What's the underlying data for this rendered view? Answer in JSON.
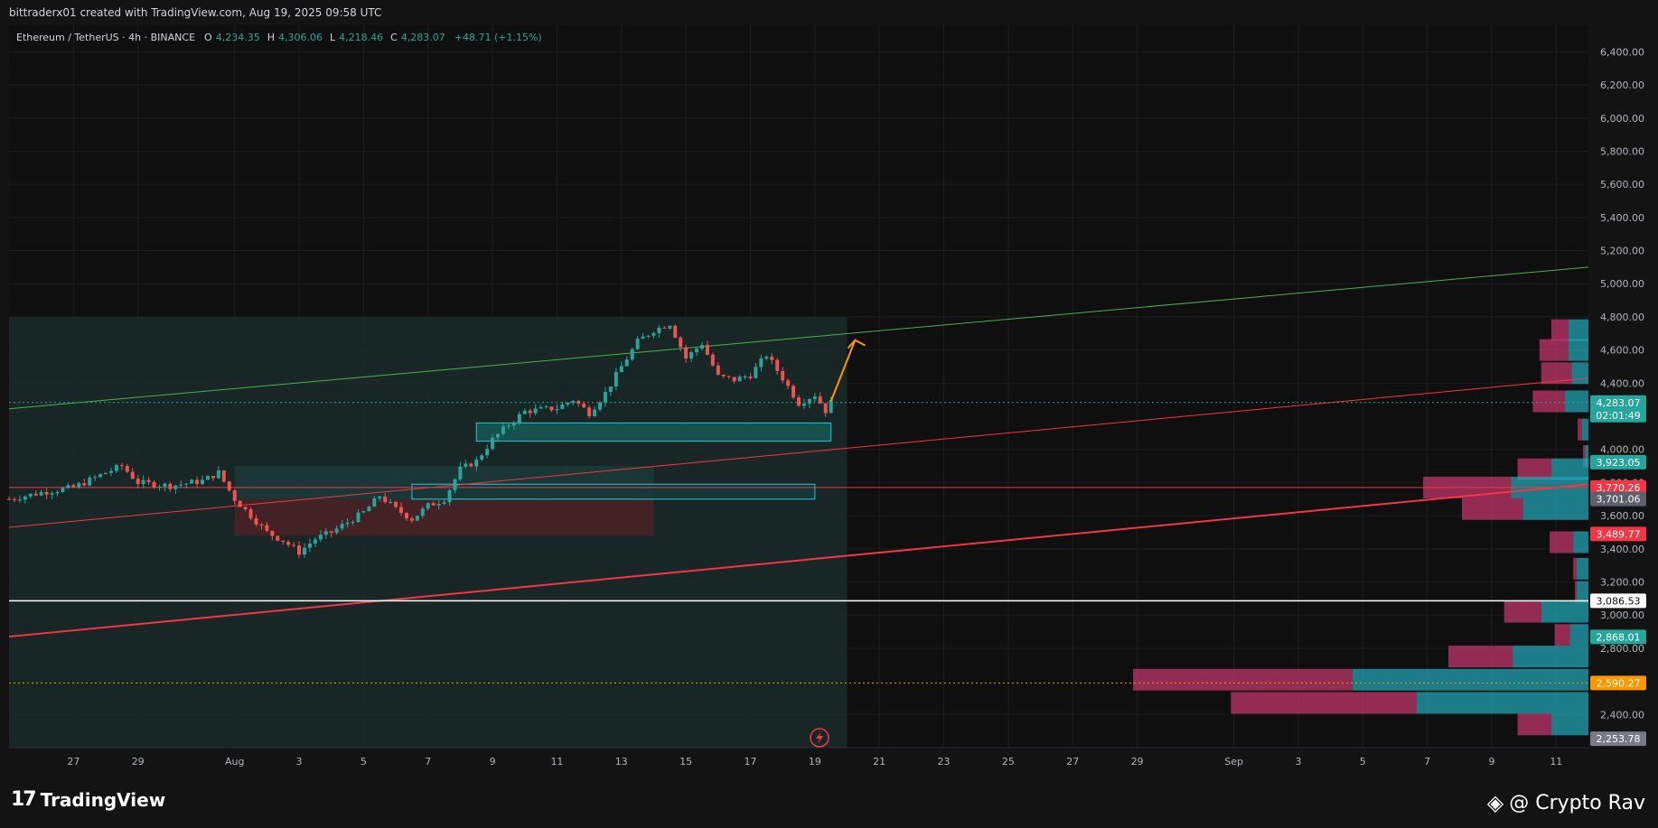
{
  "header": {
    "attribution": "bittraderx01 created with TradingView.com, Aug 19, 2025 09:58 UTC"
  },
  "legend": {
    "symbol": "Ethereum / TetherUS · 4h · BINANCE",
    "o_label": "O",
    "o_value": "4,234.35",
    "h_label": "H",
    "h_value": "4,306.06",
    "l_label": "L",
    "l_value": "4,218.46",
    "c_label": "C",
    "c_value": "4,283.07",
    "change": "+48.71 (+1.15%)"
  },
  "footer": {
    "logo_mark": "17",
    "logo_text": "TradingView",
    "watermark": "@ Crypto Rav"
  },
  "colors": {
    "background": "#131313",
    "up": "#26a69a",
    "down": "#ef5350",
    "green_line": "#4caf50",
    "red_line": "#f23645",
    "white_line": "#ffffff",
    "orange": "#ff9800",
    "vp_up": "#22a3b3",
    "vp_down": "#c2366a"
  },
  "chart_data": {
    "type": "candlestick",
    "title": "",
    "x_axis": {
      "tick_labels": [
        "27",
        "29",
        "Aug",
        "3",
        "5",
        "7",
        "9",
        "11",
        "13",
        "15",
        "17",
        "19",
        "21",
        "23",
        "25",
        "27",
        "29",
        "Sep",
        "3",
        "5",
        "7",
        "9",
        "11"
      ],
      "tick_dates": [
        "2025-07-27",
        "2025-07-29",
        "2025-08-01",
        "2025-08-03",
        "2025-08-05",
        "2025-08-07",
        "2025-08-09",
        "2025-08-11",
        "2025-08-13",
        "2025-08-15",
        "2025-08-17",
        "2025-08-19",
        "2025-08-21",
        "2025-08-23",
        "2025-08-25",
        "2025-08-27",
        "2025-08-29",
        "2025-09-01",
        "2025-09-03",
        "2025-09-05",
        "2025-09-07",
        "2025-09-09",
        "2025-09-11"
      ],
      "range": [
        "2025-07-25",
        "2025-09-12"
      ]
    },
    "y_axis": {
      "range": [
        2200,
        6560
      ],
      "tick_labels": [
        "6,400.00",
        "6,200.00",
        "6,000.00",
        "5,800.00",
        "5,600.00",
        "5,400.00",
        "5,200.00",
        "5,000.00",
        "4,800.00",
        "4,600.00",
        "4,400.00",
        "4,000.00",
        "3,800.00",
        "3,600.00",
        "3,400.00",
        "3,200.00",
        "3,000.00",
        "2,800.00",
        "2,400.00"
      ],
      "tick_values": [
        6400,
        6200,
        6000,
        5800,
        5600,
        5400,
        5200,
        5000,
        4800,
        4600,
        4400,
        4000,
        3800,
        3600,
        3400,
        3200,
        3000,
        2800,
        2400
      ]
    },
    "price_labels": [
      {
        "text": "4,283.07",
        "value": 4283.07,
        "color": "#26a69a",
        "sub": "02:01:49"
      },
      {
        "text": "3,923.05",
        "value": 3923.05,
        "color": "#26a69a"
      },
      {
        "text": "3,770.26",
        "value": 3770.26,
        "color": "#f23645"
      },
      {
        "text": "3,701.06",
        "value": 3701.06,
        "color": "#5d606b"
      },
      {
        "text": "3,489.77",
        "value": 3489.77,
        "color": "#f23645"
      },
      {
        "text": "3,086.53",
        "value": 3086.53,
        "color": "#ffffff"
      },
      {
        "text": "2,868.01",
        "value": 2868.01,
        "color": "#26a69a"
      },
      {
        "text": "2,590.27",
        "value": 2590.27,
        "color": "#ff9800"
      },
      {
        "text": "2,253.78",
        "value": 2253.78,
        "color": "#787b86"
      }
    ],
    "price_path": [
      [
        "2025-07-25 00:00",
        3700
      ],
      [
        "2025-07-26 00:00",
        3740
      ],
      [
        "2025-07-27 00:00",
        3770
      ],
      [
        "2025-07-28 00:00",
        3860
      ],
      [
        "2025-07-28 12:00",
        3900
      ],
      [
        "2025-07-29 00:00",
        3800
      ],
      [
        "2025-07-30 00:00",
        3780
      ],
      [
        "2025-07-31 00:00",
        3810
      ],
      [
        "2025-07-31 12:00",
        3860
      ],
      [
        "2025-08-01 00:00",
        3700
      ],
      [
        "2025-08-02 00:00",
        3500
      ],
      [
        "2025-08-02 12:00",
        3450
      ],
      [
        "2025-08-03 00:00",
        3380
      ],
      [
        "2025-08-03 12:00",
        3460
      ],
      [
        "2025-08-04 00:00",
        3500
      ],
      [
        "2025-08-05 00:00",
        3620
      ],
      [
        "2025-08-05 12:00",
        3720
      ],
      [
        "2025-08-06 00:00",
        3640
      ],
      [
        "2025-08-06 12:00",
        3580
      ],
      [
        "2025-08-07 00:00",
        3660
      ],
      [
        "2025-08-07 12:00",
        3700
      ],
      [
        "2025-08-08 00:00",
        3880
      ],
      [
        "2025-08-08 12:00",
        3930
      ],
      [
        "2025-08-09 00:00",
        4060
      ],
      [
        "2025-08-09 12:00",
        4150
      ],
      [
        "2025-08-10 00:00",
        4230
      ],
      [
        "2025-08-11 00:00",
        4250
      ],
      [
        "2025-08-11 12:00",
        4300
      ],
      [
        "2025-08-12 00:00",
        4220
      ],
      [
        "2025-08-12 12:00",
        4340
      ],
      [
        "2025-08-13 00:00",
        4500
      ],
      [
        "2025-08-13 12:00",
        4650
      ],
      [
        "2025-08-14 00:00",
        4720
      ],
      [
        "2025-08-14 12:00",
        4760
      ],
      [
        "2025-08-15 00:00",
        4550
      ],
      [
        "2025-08-15 12:00",
        4640
      ],
      [
        "2025-08-16 00:00",
        4440
      ],
      [
        "2025-08-16 12:00",
        4420
      ],
      [
        "2025-08-17 00:00",
        4450
      ],
      [
        "2025-08-17 12:00",
        4570
      ],
      [
        "2025-08-18 00:00",
        4430
      ],
      [
        "2025-08-18 12:00",
        4280
      ],
      [
        "2025-08-19 00:00",
        4330
      ],
      [
        "2025-08-19 08:00",
        4234
      ],
      [
        "2025-08-19 12:00",
        4283
      ]
    ],
    "lines": [
      {
        "name": "green-trendline",
        "color": "#4caf50",
        "from": [
          "2025-07-25",
          4245
        ],
        "to": [
          "2025-09-12",
          5100
        ],
        "width": 1
      },
      {
        "name": "red-channel-upper",
        "color": "#f23645",
        "from": [
          "2025-07-25",
          3530
        ],
        "to": [
          "2025-09-12",
          4430
        ],
        "width": 1
      },
      {
        "name": "red-channel-lower",
        "color": "#f23645",
        "from": [
          "2025-07-25",
          2870
        ],
        "to": [
          "2025-09-12",
          3790
        ],
        "width": 2
      },
      {
        "name": "horizontal-resistance-3770",
        "color": "#f23645",
        "from": [
          "2025-07-25",
          3770.26
        ],
        "to": [
          "2025-09-12",
          3770.26
        ],
        "width": 1
      },
      {
        "name": "horizontal-support-3086",
        "color": "#ffffff",
        "from": [
          "2025-07-25",
          3086.53
        ],
        "to": [
          "2025-09-12",
          3086.53
        ],
        "width": 1.5
      },
      {
        "name": "dotted-level-2590",
        "color": "#ff9800",
        "from": [
          "2025-07-25",
          2590.27
        ],
        "to": [
          "2025-09-12",
          2590.27
        ],
        "width": 1,
        "dash": true
      },
      {
        "name": "dotted-last-price",
        "color": "#26a69a",
        "from": [
          "2025-07-25",
          4283.07
        ],
        "to": [
          "2025-09-12",
          4283.07
        ],
        "width": 1,
        "dash": true
      }
    ],
    "zones": [
      {
        "name": "shaded-range-zone",
        "x": [
          "2025-07-25",
          "2025-08-20"
        ],
        "y": [
          2200,
          4800
        ],
        "fill": "#1b2a2a",
        "stroke": null
      },
      {
        "name": "green-demand-zone",
        "x": [
          "2025-08-01",
          "2025-08-14"
        ],
        "y": [
          3700,
          3900
        ],
        "fill": "#1c3b38",
        "stroke": null
      },
      {
        "name": "red-demand-zone",
        "x": [
          "2025-08-01",
          "2025-08-14"
        ],
        "y": [
          3480,
          3700
        ],
        "fill": "#4a2226",
        "stroke": null
      },
      {
        "name": "order-block-upper",
        "x": [
          "2025-08-08 12:00",
          "2025-08-19 12:00"
        ],
        "y": [
          4050,
          4160
        ],
        "fill": "#155a55",
        "stroke": "#26c6da"
      },
      {
        "name": "order-block-lower",
        "x": [
          "2025-08-06 12:00",
          "2025-08-19 00:00"
        ],
        "y": [
          3700,
          3790
        ],
        "fill": "#16383a",
        "stroke": "#26c6da"
      }
    ],
    "arrow": {
      "color": "#ff9800",
      "from": [
        "2025-08-19 12:00",
        4290
      ],
      "to": [
        "2025-08-20 06:00",
        4660
      ]
    },
    "volume_profile": [
      {
        "price": 4720,
        "up": 60,
        "down": 50
      },
      {
        "price": 4600,
        "up": 60,
        "down": 85
      },
      {
        "price": 4460,
        "up": 50,
        "down": 90
      },
      {
        "price": 4290,
        "up": 70,
        "down": 95
      },
      {
        "price": 4120,
        "up": 20,
        "down": 12
      },
      {
        "price": 3960,
        "up": 10,
        "down": 6
      },
      {
        "price": 3880,
        "up": 110,
        "down": 100
      },
      {
        "price": 3770,
        "up": 230,
        "down": 260
      },
      {
        "price": 3640,
        "up": 195,
        "down": 180
      },
      {
        "price": 3440,
        "up": 45,
        "down": 70
      },
      {
        "price": 3280,
        "up": 35,
        "down": 10
      },
      {
        "price": 3140,
        "up": 35,
        "down": 5
      },
      {
        "price": 3020,
        "up": 140,
        "down": 110
      },
      {
        "price": 2880,
        "up": 55,
        "down": 45
      },
      {
        "price": 2750,
        "up": 225,
        "down": 190
      },
      {
        "price": 2610,
        "up": 700,
        "down": 650
      },
      {
        "price": 2470,
        "up": 510,
        "down": 550
      },
      {
        "price": 2340,
        "up": 110,
        "down": 100
      }
    ]
  }
}
